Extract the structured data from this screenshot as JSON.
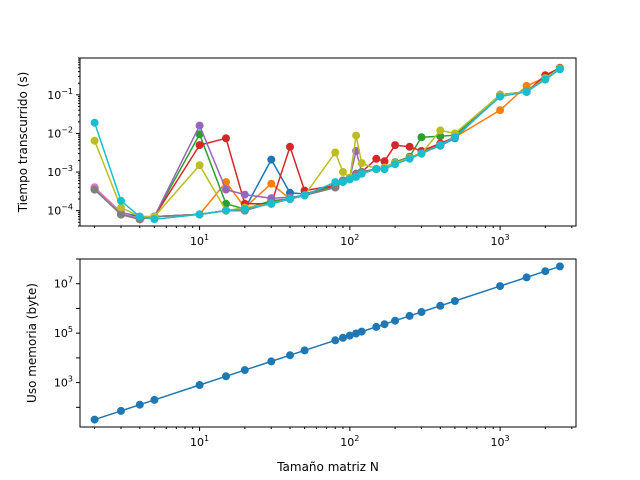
{
  "chart_data": [
    {
      "type": "line",
      "xlabel": "",
      "ylabel": "Tiempo transcurrido (s)",
      "xscale": "log",
      "yscale": "log",
      "xlim": [
        1.6,
        3200
      ],
      "ylim": [
        4e-05,
        0.9
      ],
      "x_tick_labels": [
        "10^1",
        "10^2",
        "10^3"
      ],
      "y_tick_labels": [
        "10^-4",
        "10^-3",
        "10^-2",
        "10^-1"
      ],
      "x": [
        2,
        3,
        4,
        5,
        10,
        15,
        20,
        30,
        40,
        50,
        80,
        90,
        100,
        110,
        120,
        150,
        170,
        200,
        250,
        300,
        400,
        500,
        1000,
        1500,
        2000,
        2500
      ],
      "series": [
        {
          "color": "#1f77b4",
          "values": [
            0.00038,
            9e-05,
            7e-05,
            7e-05,
            8e-05,
            0.0001,
            0.00011,
            0.0021,
            0.00029,
            0.00027,
            0.00045,
            0.0006,
            0.00065,
            0.00085,
            0.00095,
            0.0012,
            0.0012,
            0.0017,
            0.0023,
            0.0031,
            0.0048,
            0.0075,
            0.1,
            0.12,
            0.27,
            0.5
          ]
        },
        {
          "color": "#ff7f0e",
          "values": [
            0.0004,
            8e-05,
            6e-05,
            7e-05,
            8e-05,
            0.00055,
            0.00012,
            0.0005,
            0.0002,
            0.00025,
            0.00045,
            0.0006,
            0.0007,
            0.00085,
            0.001,
            0.0012,
            0.0013,
            0.0017,
            0.0023,
            0.0032,
            0.005,
            0.008,
            0.04,
            0.17,
            0.28,
            0.47
          ]
        },
        {
          "color": "#2ca02c",
          "values": [
            0.00035,
            8e-05,
            6e-05,
            7e-05,
            0.0095,
            0.00015,
            0.00011,
            0.00018,
            0.0002,
            0.00025,
            0.00045,
            0.0006,
            0.0007,
            0.0009,
            0.001,
            0.0012,
            0.0013,
            0.0018,
            0.0025,
            0.008,
            0.0085,
            0.009,
            0.1,
            0.12,
            0.27,
            0.5
          ]
        },
        {
          "color": "#d62728",
          "values": [
            0.00037,
            8e-05,
            6e-05,
            7e-05,
            0.005,
            0.0075,
            0.00015,
            0.00015,
            0.0045,
            0.00033,
            0.00045,
            0.0006,
            0.0007,
            0.0009,
            0.001,
            0.0022,
            0.0019,
            0.005,
            0.0045,
            0.0035,
            0.0055,
            0.008,
            0.1,
            0.12,
            0.32,
            0.5
          ]
        },
        {
          "color": "#9467bd",
          "values": [
            0.00038,
            9e-05,
            6e-05,
            7e-05,
            0.016,
            0.00035,
            0.00026,
            0.00021,
            0.00022,
            0.00025,
            0.0004,
            0.0006,
            0.0007,
            0.0035,
            0.001,
            0.0012,
            0.0013,
            0.0017,
            0.0023,
            0.003,
            0.005,
            0.0078,
            0.1,
            0.12,
            0.27,
            0.48
          ]
        },
        {
          "color": "#8c564b",
          "values": [
            0.0004,
            9e-05,
            6e-05,
            7e-05,
            8e-05,
            0.0001,
            0.0001,
            0.00016,
            0.0002,
            0.00025,
            0.0004,
            0.0006,
            0.0007,
            0.0009,
            0.001,
            0.0012,
            0.0013,
            0.0017,
            0.0023,
            0.003,
            0.005,
            0.0078,
            0.1,
            0.12,
            0.27,
            0.48
          ]
        },
        {
          "color": "#e377c2",
          "values": [
            0.0004,
            9e-05,
            6e-05,
            7e-05,
            8e-05,
            0.0001,
            0.0001,
            0.00016,
            0.0002,
            0.00025,
            0.0004,
            0.0006,
            0.0007,
            0.0009,
            0.001,
            0.0012,
            0.0013,
            0.0017,
            0.0023,
            0.003,
            0.005,
            0.0078,
            0.1,
            0.12,
            0.27,
            0.48
          ]
        },
        {
          "color": "#7f7f7f",
          "values": [
            0.00035,
            8e-05,
            6e-05,
            7e-05,
            8e-05,
            0.0001,
            0.0001,
            0.00016,
            0.0002,
            0.00025,
            0.0004,
            0.0006,
            0.0007,
            0.0009,
            0.001,
            0.0012,
            0.0013,
            0.0017,
            0.0023,
            0.003,
            0.005,
            0.0078,
            0.1,
            0.12,
            0.27,
            0.48
          ]
        },
        {
          "color": "#bcbd22",
          "values": [
            0.0065,
            0.00012,
            7e-05,
            7e-05,
            0.0015,
            0.0001,
            0.00012,
            0.00015,
            0.0002,
            0.00025,
            0.0032,
            0.001,
            0.0007,
            0.0088,
            0.0017,
            0.0012,
            0.0013,
            0.0017,
            0.0023,
            0.003,
            0.012,
            0.01,
            0.1,
            0.12,
            0.27,
            0.48
          ]
        },
        {
          "color": "#17becf",
          "values": [
            0.019,
            0.00018,
            7e-05,
            6e-05,
            8e-05,
            0.0001,
            0.00011,
            0.00015,
            0.0002,
            0.00025,
            0.00055,
            0.00055,
            0.00065,
            0.00075,
            0.0009,
            0.0012,
            0.0012,
            0.0016,
            0.0022,
            0.003,
            0.005,
            0.008,
            0.09,
            0.12,
            0.25,
            0.46
          ]
        }
      ]
    },
    {
      "type": "line",
      "xlabel": "Tamaño matriz N",
      "ylabel": "Uso memoria (byte)",
      "xscale": "log",
      "yscale": "log",
      "xlim": [
        1.6,
        3200
      ],
      "ylim": [
        16,
        100000000.0
      ],
      "x_tick_labels": [
        "10^1",
        "10^2",
        "10^3"
      ],
      "y_tick_labels": [
        "10^3",
        "10^5",
        "10^7"
      ],
      "x": [
        2,
        3,
        4,
        5,
        10,
        15,
        20,
        30,
        40,
        50,
        80,
        90,
        100,
        110,
        120,
        150,
        170,
        200,
        250,
        300,
        400,
        500,
        1000,
        1500,
        2000,
        2500
      ],
      "series": [
        {
          "color": "#1f77b4",
          "values": [
            32,
            72,
            128,
            200,
            800,
            1800,
            3200,
            7200,
            12800,
            20000,
            51200,
            64800,
            80000,
            96800,
            115200,
            180000,
            231200,
            320000,
            500000,
            720000,
            1280000,
            2000000,
            8000000,
            18000000,
            32000000,
            50000000
          ]
        }
      ]
    }
  ]
}
